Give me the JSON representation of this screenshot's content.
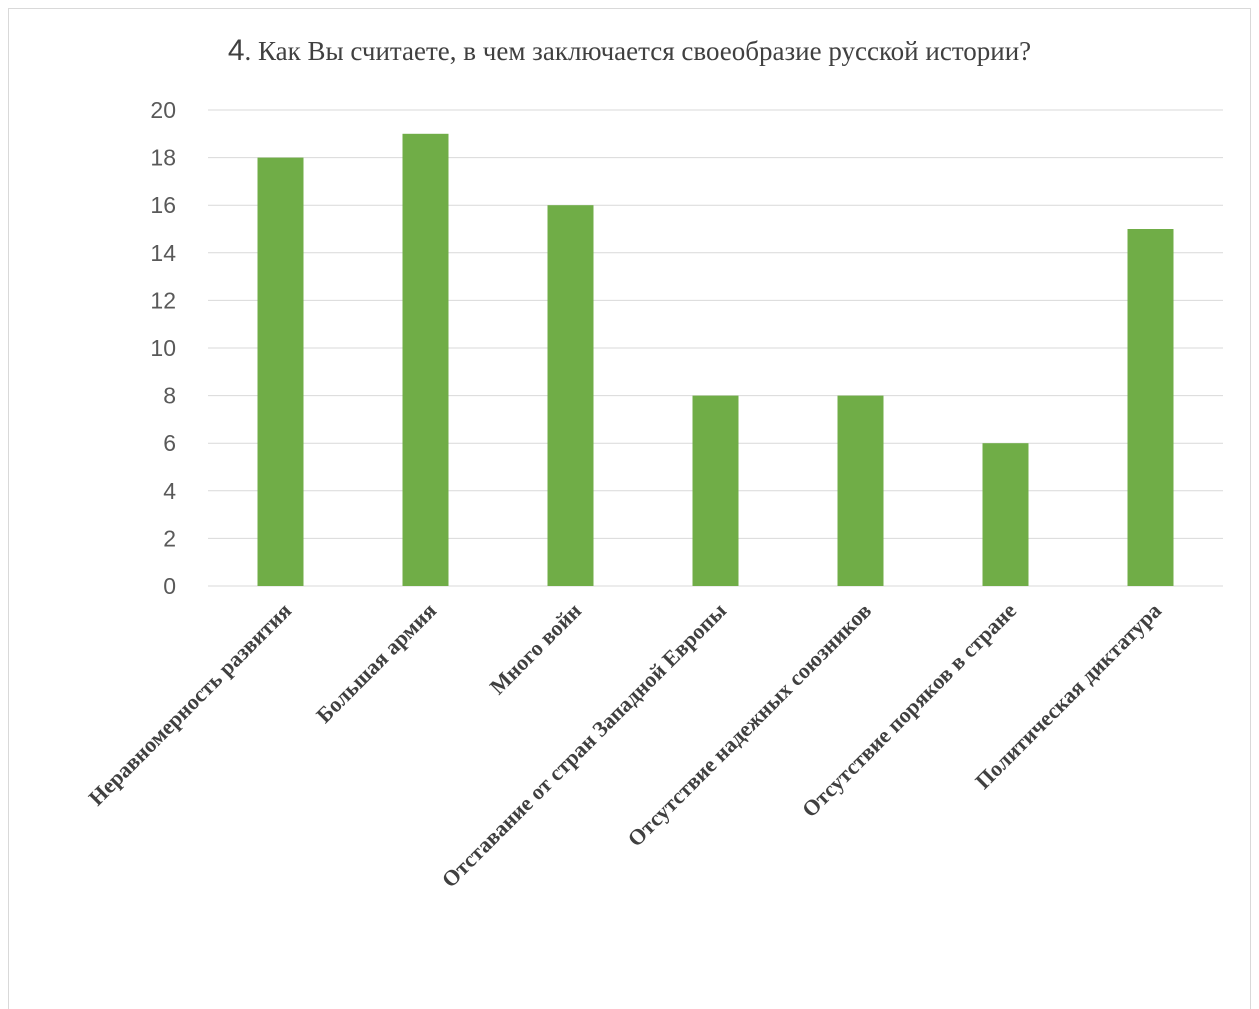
{
  "chart_data": {
    "type": "bar",
    "title_number": "4",
    "title_text": ". Как Вы считаете, в чем заключается своеобразие русской истории?",
    "categories": [
      "Неравномерность развития",
      "Большая армия",
      "Много войн",
      "Отставание от стран Западной Европы",
      "Отсутствие надежных союзников",
      "Отсутствие поряков в стране",
      "Политическая диктатура"
    ],
    "values": [
      18,
      19,
      16,
      8,
      8,
      6,
      15
    ],
    "ylim": [
      0,
      20
    ],
    "yticks": [
      "0",
      "2",
      "4",
      "6",
      "8",
      "10",
      "12",
      "14",
      "16",
      "18",
      "20"
    ],
    "grid": true,
    "legend": "none",
    "colors": {
      "bar": "#70ad47",
      "grid": "#d9d9d9"
    }
  }
}
